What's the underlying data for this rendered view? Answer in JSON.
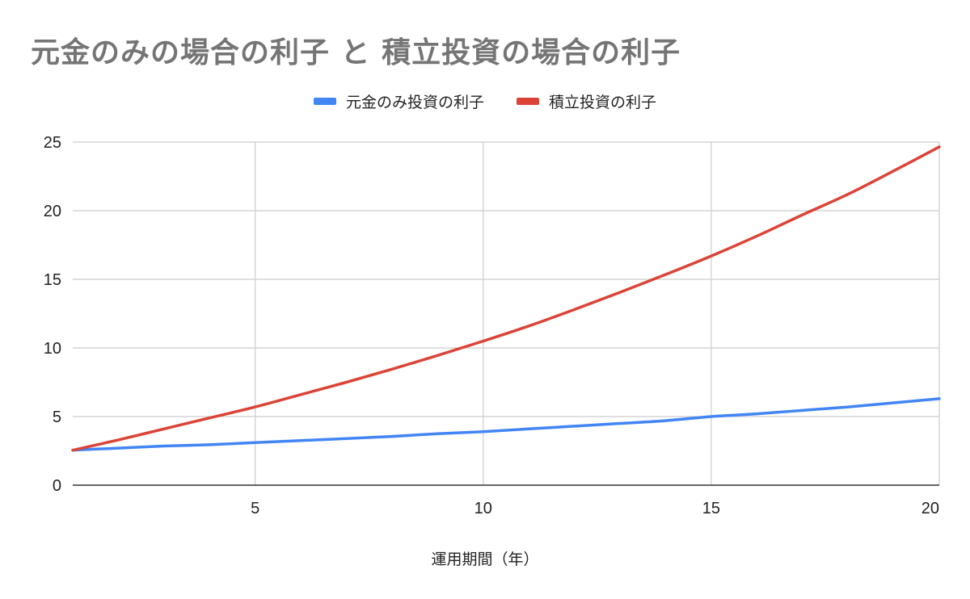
{
  "chart_data": {
    "type": "line",
    "title": "元金のみの場合の利子 と 積立投資の場合の利子",
    "xlabel": "運用期間（年）",
    "ylabel": "",
    "xlim": [
      1,
      20
    ],
    "ylim": [
      0,
      25
    ],
    "x_ticks": [
      5,
      10,
      15,
      20
    ],
    "y_ticks": [
      0,
      5,
      10,
      15,
      20,
      25
    ],
    "grid": true,
    "legend_position": "top",
    "x": [
      1,
      2,
      3,
      4,
      5,
      6,
      7,
      8,
      9,
      10,
      11,
      12,
      13,
      14,
      15,
      16,
      17,
      18,
      19,
      20
    ],
    "series": [
      {
        "name": "元金のみ投資の利子",
        "color": "#4285f4",
        "values": [
          2.55,
          2.7,
          2.85,
          2.95,
          3.1,
          3.25,
          3.4,
          3.55,
          3.75,
          3.9,
          4.1,
          4.3,
          4.5,
          4.7,
          5.0,
          5.2,
          5.45,
          5.7,
          6.0,
          6.3
        ]
      },
      {
        "name": "積立投資の利子",
        "color": "#db4437",
        "values": [
          2.55,
          3.3,
          4.1,
          4.9,
          5.7,
          6.6,
          7.5,
          8.45,
          9.45,
          10.5,
          11.6,
          12.8,
          14.05,
          15.35,
          16.7,
          18.15,
          19.7,
          21.2,
          22.9,
          24.65
        ]
      }
    ]
  }
}
